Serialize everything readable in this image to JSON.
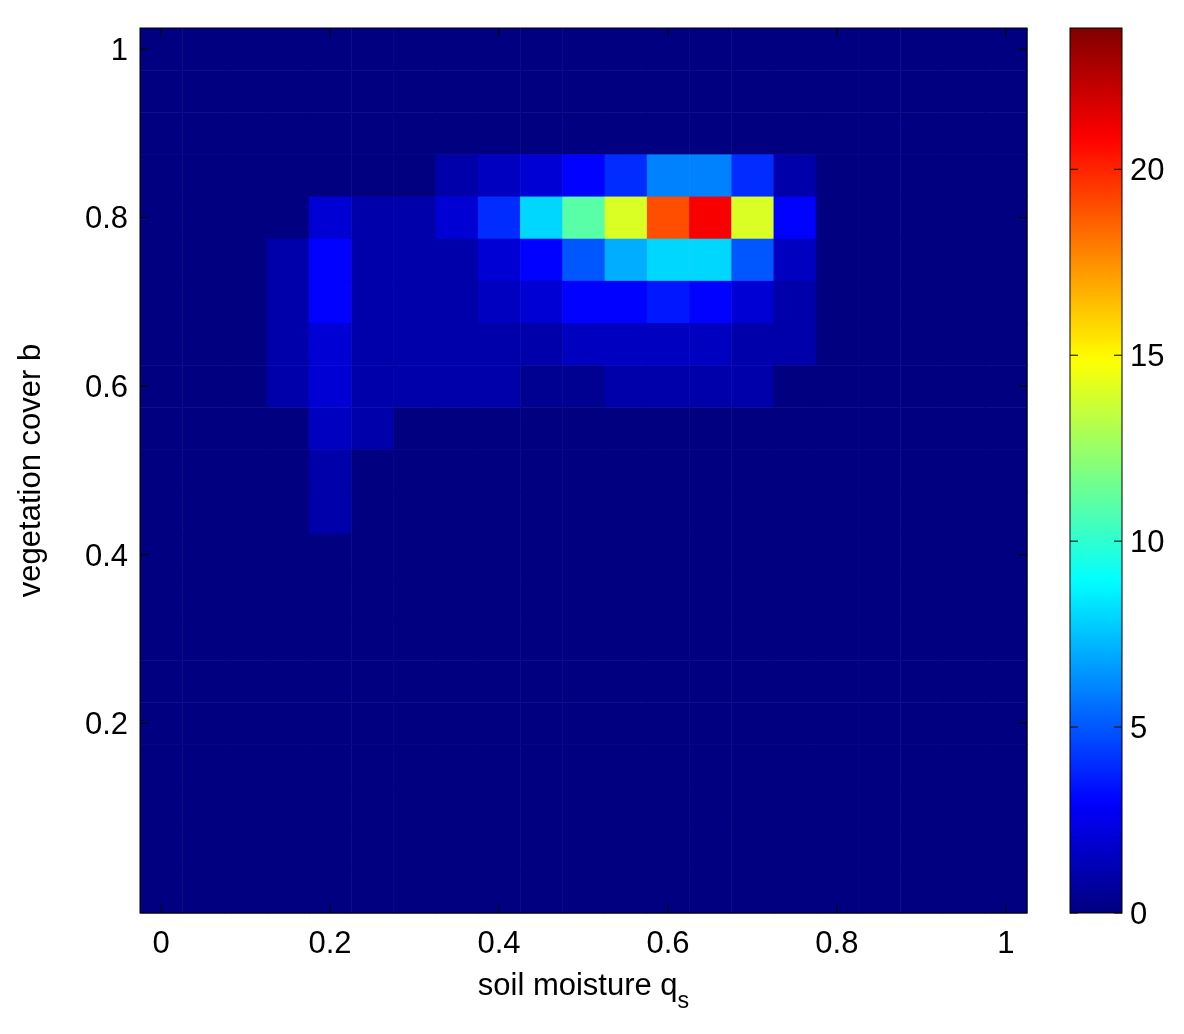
{
  "chart_data": {
    "type": "heatmap",
    "xlabel": "soil moisture q$_{s}$",
    "ylabel": "vegetation cover b",
    "categories": [
      "0",
      null,
      null,
      null,
      "0.2",
      null,
      null,
      null,
      "0.4",
      null,
      null,
      null,
      "0.6",
      null,
      null,
      null,
      "0.8",
      null,
      null,
      null,
      "1"
    ],
    "y_categories": [
      "1",
      null,
      null,
      null,
      "0.8",
      null,
      null,
      null,
      "0.6",
      null,
      null,
      null,
      "0.4",
      null,
      null,
      null,
      "0.2",
      null,
      null,
      null,
      null
    ],
    "clim": [
      0,
      23.8
    ],
    "cticks": [
      0,
      5,
      10,
      15,
      20
    ],
    "cells": [
      [
        0,
        0,
        0,
        0,
        0,
        0,
        0,
        0,
        0,
        0,
        0,
        0,
        0,
        0,
        0,
        0,
        0,
        0,
        0,
        0,
        0
      ],
      [
        0,
        0,
        0,
        0,
        0,
        0,
        0,
        0,
        0,
        0,
        0,
        0,
        0,
        0,
        0,
        0,
        0,
        0,
        0,
        0,
        0
      ],
      [
        0,
        0,
        0,
        0,
        0,
        0,
        0,
        0,
        0,
        0,
        0,
        0,
        0,
        0,
        0,
        0,
        0,
        0,
        0,
        0,
        0
      ],
      [
        0,
        0,
        0,
        0,
        0,
        0,
        0,
        1,
        1.5,
        2,
        3,
        4,
        6,
        6,
        4,
        1,
        0,
        0,
        0,
        0,
        0
      ],
      [
        0,
        0,
        0,
        0,
        2,
        1,
        1,
        2,
        4,
        8,
        11,
        14,
        19,
        21,
        14,
        3,
        0,
        0,
        0,
        0,
        0
      ],
      [
        0,
        0,
        0,
        1,
        3,
        1,
        1,
        1,
        2,
        3,
        5,
        7,
        8,
        8,
        5,
        1.5,
        0,
        0,
        0,
        0,
        0
      ],
      [
        0,
        0,
        0,
        1,
        3,
        1,
        1,
        1,
        1.5,
        2,
        3,
        3,
        3.5,
        3,
        2,
        1,
        0,
        0,
        0,
        0,
        0
      ],
      [
        0,
        0,
        0,
        1,
        2,
        1,
        1,
        1,
        1,
        1,
        1.5,
        1.5,
        1.5,
        1.5,
        1,
        1,
        0,
        0,
        0,
        0,
        0
      ],
      [
        0,
        0,
        0,
        1,
        2,
        1,
        1,
        1,
        1,
        0.4,
        0.4,
        1,
        1,
        1,
        1,
        0,
        0,
        0,
        0,
        0,
        0
      ],
      [
        0,
        0,
        0,
        0,
        1.5,
        1,
        0,
        0,
        0,
        0,
        0,
        0,
        0,
        0,
        0,
        0,
        0,
        0,
        0,
        0,
        0
      ],
      [
        0,
        0,
        0,
        0,
        1,
        0,
        0,
        0,
        0,
        0,
        0,
        0,
        0,
        0,
        0,
        0,
        0,
        0,
        0,
        0,
        0
      ],
      [
        0,
        0,
        0,
        0,
        1,
        0,
        0,
        0,
        0,
        0,
        0,
        0,
        0,
        0,
        0,
        0,
        0,
        0,
        0,
        0,
        0
      ],
      [
        0,
        0,
        0,
        0,
        0,
        0,
        0,
        0,
        0,
        0,
        0,
        0,
        0,
        0,
        0,
        0,
        0,
        0,
        0,
        0,
        0
      ],
      [
        0,
        0,
        0,
        0,
        0,
        0,
        0,
        0,
        0,
        0,
        0,
        0,
        0,
        0,
        0,
        0,
        0,
        0,
        0,
        0,
        0
      ],
      [
        0,
        0,
        0,
        0,
        0,
        0,
        0,
        0,
        0,
        0,
        0,
        0,
        0,
        0,
        0,
        0,
        0,
        0,
        0,
        0,
        0
      ],
      [
        0,
        0,
        0,
        0,
        0,
        0,
        0,
        0,
        0,
        0,
        0,
        0,
        0,
        0,
        0,
        0,
        0,
        0,
        0,
        0,
        0
      ],
      [
        0,
        0,
        0,
        0,
        0,
        0,
        0,
        0,
        0,
        0,
        0,
        0,
        0,
        0,
        0,
        0,
        0,
        0,
        0,
        0,
        0
      ],
      [
        0,
        0,
        0,
        0,
        0,
        0,
        0,
        0,
        0,
        0,
        0,
        0,
        0,
        0,
        0,
        0,
        0,
        0,
        0,
        0,
        0
      ],
      [
        0,
        0,
        0,
        0,
        0,
        0,
        0,
        0,
        0,
        0,
        0,
        0,
        0,
        0,
        0,
        0,
        0,
        0,
        0,
        0,
        0
      ],
      [
        0,
        0,
        0,
        0,
        0,
        0,
        0,
        0,
        0,
        0,
        0,
        0,
        0,
        0,
        0,
        0,
        0,
        0,
        0,
        0,
        0
      ],
      [
        0,
        0,
        0,
        0,
        0,
        0,
        0,
        0,
        0,
        0,
        0,
        0,
        0,
        0,
        0,
        0,
        0,
        0,
        0,
        0,
        0
      ]
    ]
  }
}
